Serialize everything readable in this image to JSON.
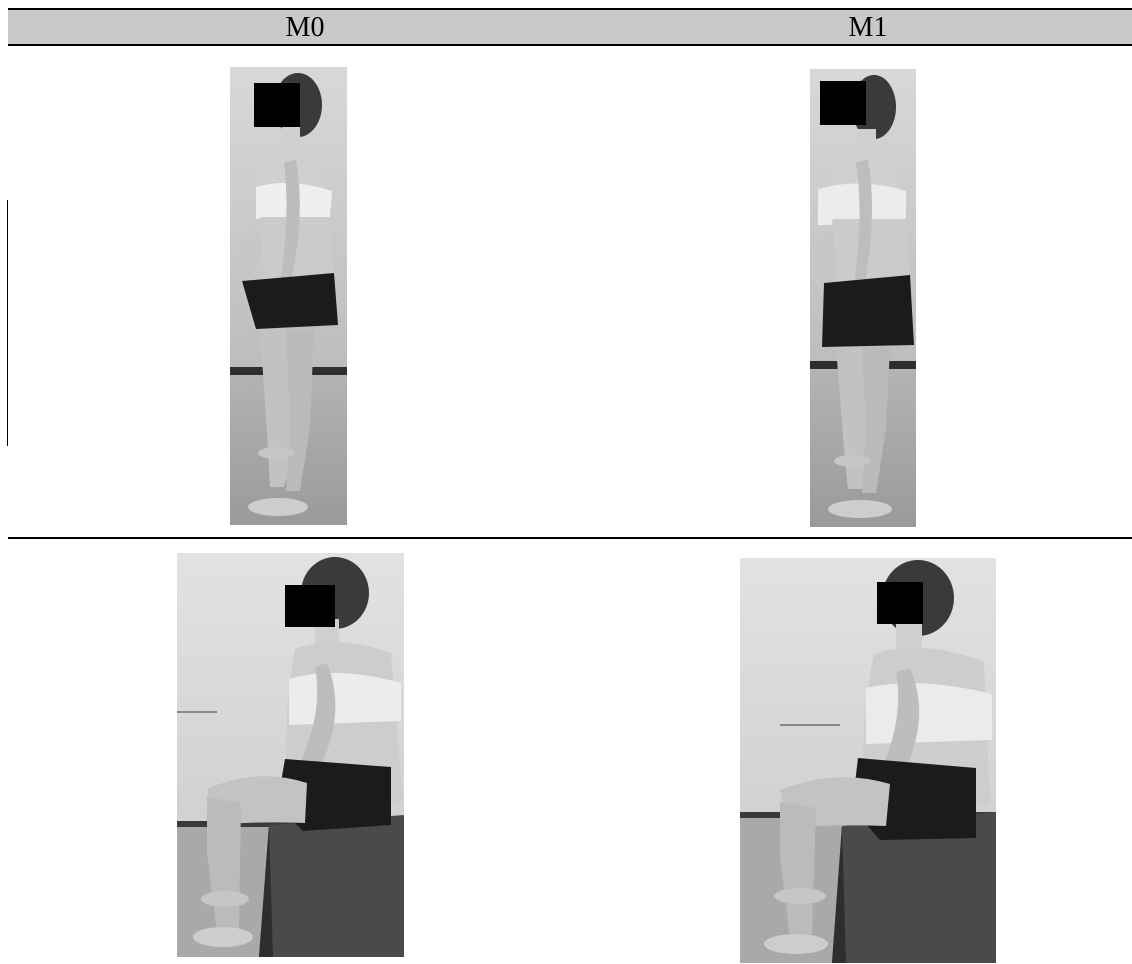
{
  "columns": {
    "m0": "M0",
    "m1": "M1"
  },
  "colors": {
    "header_band": "#c9c9c9",
    "rule": "#000000",
    "censor_box": "#000000"
  },
  "photos": [
    {
      "id": "standing-m0",
      "icon": "standing-person-side-photo"
    },
    {
      "id": "standing-m1",
      "icon": "standing-person-side-photo"
    },
    {
      "id": "sitting-m0",
      "icon": "sitting-person-side-photo"
    },
    {
      "id": "sitting-m1",
      "icon": "sitting-person-side-photo"
    }
  ]
}
